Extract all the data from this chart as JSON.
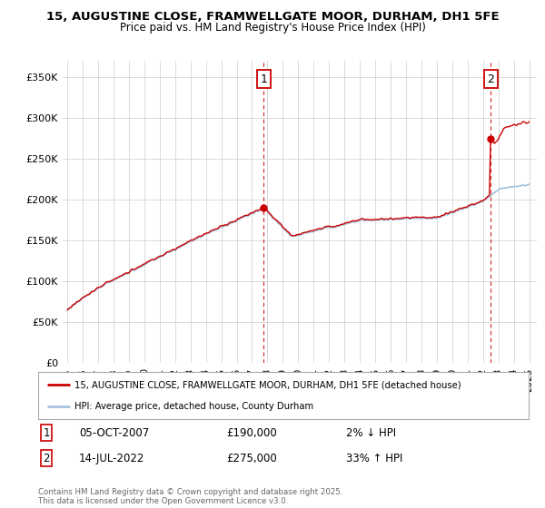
{
  "title_line1": "15, AUGUSTINE CLOSE, FRAMWELLGATE MOOR, DURHAM, DH1 5FE",
  "title_line2": "Price paid vs. HM Land Registry's House Price Index (HPI)",
  "ylim": [
    0,
    370000
  ],
  "yticks": [
    0,
    50000,
    100000,
    150000,
    200000,
    250000,
    300000,
    350000
  ],
  "ytick_labels": [
    "£0",
    "£50K",
    "£100K",
    "£150K",
    "£200K",
    "£250K",
    "£300K",
    "£350K"
  ],
  "hpi_color": "#a8c4e0",
  "price_color": "#cc0000",
  "sale1_year": 2007.75,
  "sale1_price": 190000,
  "sale1_date": "05-OCT-2007",
  "sale1_pct": "2%",
  "sale1_dir": "↓",
  "sale2_year": 2022.5,
  "sale2_price": 275000,
  "sale2_date": "14-JUL-2022",
  "sale2_pct": "33%",
  "sale2_dir": "↑",
  "legend_label1": "15, AUGUSTINE CLOSE, FRAMWELLGATE MOOR, DURHAM, DH1 5FE (detached house)",
  "legend_label2": "HPI: Average price, detached house, County Durham",
  "footer": "Contains HM Land Registry data © Crown copyright and database right 2025.\nThis data is licensed under the Open Government Licence v3.0.",
  "background_color": "#ffffff",
  "grid_color": "#cccccc"
}
